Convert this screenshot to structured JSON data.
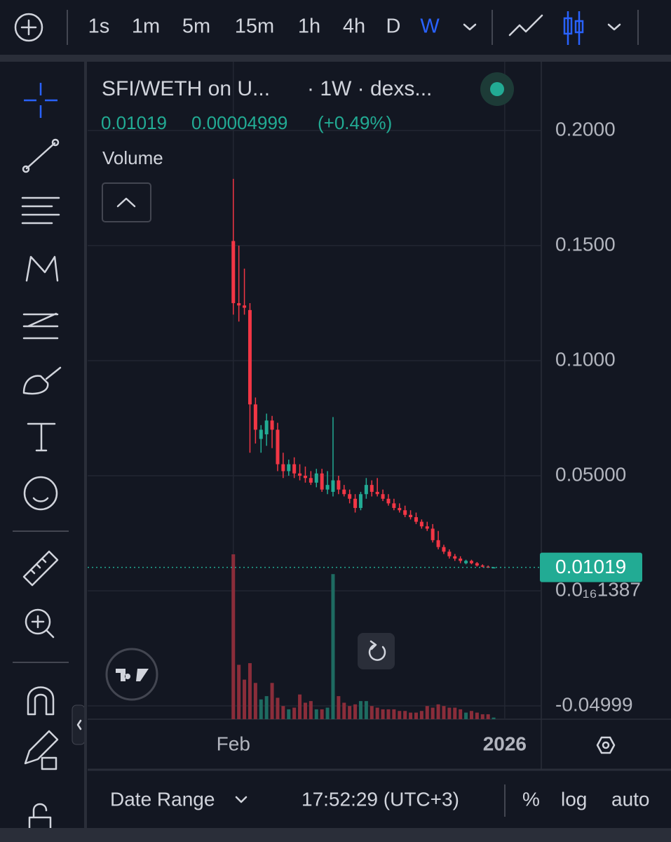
{
  "toolbar": {
    "timeframes": [
      "1s",
      "1m",
      "5m",
      "15m",
      "1h",
      "4h",
      "D",
      "W"
    ]
  },
  "bottom_bar": {
    "date_range": "Date Range",
    "time": "17:52:29 (UTC+3)",
    "percent": "%",
    "log": "log",
    "auto": "auto"
  },
  "chart_data": {
    "type": "candlestick",
    "title": "SFI/WETH on U...",
    "subtitle": "· 1W · dexs...",
    "legend_values": [
      "0.01019",
      "0.00004999",
      "(+0.49%)"
    ],
    "volume_label": "Volume",
    "x": [
      0,
      1,
      2,
      3,
      4,
      5,
      6,
      7,
      8,
      9,
      10,
      11,
      12,
      13,
      14,
      15,
      16,
      17,
      18,
      19,
      20,
      21,
      22,
      23,
      24,
      25,
      26,
      27,
      28,
      29,
      30,
      31,
      32,
      33,
      34,
      35,
      36,
      37,
      38,
      39,
      40,
      41,
      42,
      43,
      44,
      45,
      46,
      47
    ],
    "open": [
      0.152,
      0.125,
      0.124,
      0.122,
      0.081,
      0.066,
      0.068,
      0.074,
      0.07,
      0.055,
      0.052,
      0.055,
      0.051,
      0.05,
      0.049,
      0.047,
      0.051,
      0.044,
      0.043,
      0.048,
      0.044,
      0.042,
      0.04,
      0.036,
      0.042,
      0.046,
      0.043,
      0.042,
      0.04,
      0.038,
      0.036,
      0.035,
      0.033,
      0.032,
      0.03,
      0.028,
      0.027,
      0.022,
      0.019,
      0.017,
      0.015,
      0.014,
      0.012,
      0.013,
      0.012,
      0.011,
      0.0105,
      0.01014
    ],
    "high": [
      0.179,
      0.15,
      0.14,
      0.125,
      0.084,
      0.072,
      0.077,
      0.076,
      0.073,
      0.06,
      0.057,
      0.058,
      0.055,
      0.054,
      0.052,
      0.053,
      0.053,
      0.052,
      0.0755,
      0.05,
      0.046,
      0.044,
      0.042,
      0.043,
      0.049,
      0.048,
      0.049,
      0.044,
      0.042,
      0.04,
      0.038,
      0.037,
      0.035,
      0.034,
      0.031,
      0.03,
      0.029,
      0.026,
      0.02,
      0.018,
      0.016,
      0.015,
      0.0135,
      0.0135,
      0.0125,
      0.0115,
      0.011,
      0.0104
    ],
    "low": [
      0.12,
      0.117,
      0.12,
      0.06,
      0.064,
      0.06,
      0.063,
      0.062,
      0.052,
      0.049,
      0.05,
      0.049,
      0.048,
      0.047,
      0.046,
      0.045,
      0.043,
      0.042,
      0.041,
      0.042,
      0.041,
      0.038,
      0.034,
      0.035,
      0.04,
      0.041,
      0.041,
      0.039,
      0.037,
      0.035,
      0.034,
      0.032,
      0.031,
      0.029,
      0.027,
      0.026,
      0.021,
      0.018,
      0.016,
      0.014,
      0.013,
      0.012,
      0.0115,
      0.0115,
      0.0105,
      0.0102,
      0.01,
      0.01
    ],
    "close": [
      0.125,
      0.124,
      0.123,
      0.081,
      0.07,
      0.07,
      0.074,
      0.07,
      0.055,
      0.052,
      0.055,
      0.051,
      0.05,
      0.049,
      0.047,
      0.051,
      0.044,
      0.046,
      0.048,
      0.044,
      0.042,
      0.04,
      0.036,
      0.042,
      0.046,
      0.043,
      0.042,
      0.04,
      0.038,
      0.036,
      0.035,
      0.033,
      0.032,
      0.03,
      0.028,
      0.027,
      0.022,
      0.019,
      0.017,
      0.015,
      0.014,
      0.013,
      0.013,
      0.012,
      0.011,
      0.0105,
      0.01014,
      0.01019
    ],
    "volume": [
      100,
      33,
      24,
      34,
      22,
      12,
      14,
      22,
      13,
      8,
      6,
      7,
      15,
      10,
      11,
      6,
      6,
      7,
      88,
      14,
      10,
      8,
      9,
      11,
      11,
      8,
      7,
      6,
      6,
      6,
      5,
      5,
      4,
      4,
      5,
      8,
      7,
      9,
      8,
      7,
      7,
      6,
      4,
      5,
      4,
      3,
      3,
      1
    ],
    "vlim": [
      0,
      100
    ],
    "up_color": "#22ab94",
    "down_color": "#f23645",
    "up_volume_color": "#1e6b61",
    "down_volume_color": "#8a2d3a",
    "xlim": [
      -26.3,
      55.6
    ],
    "xticks": [
      {
        "value": 0,
        "label": "Feb"
      },
      {
        "value": 49,
        "label": "2026"
      }
    ],
    "ylim": [
      -0.0558,
      0.2299
    ],
    "yticks": [
      {
        "value": 0.2,
        "label": "0.2000"
      },
      {
        "value": 0.15,
        "label": "0.1500"
      },
      {
        "value": 0.1,
        "label": "0.1000"
      },
      {
        "value": 0.05,
        "label": "0.05000"
      },
      {
        "value": 1.387e-17,
        "label": "0.0₁₆1387"
      },
      {
        "value": -0.04999,
        "label": "-0.04999"
      }
    ],
    "last_price": {
      "value": 0.01019,
      "label": "0.01019"
    },
    "grid": true
  }
}
